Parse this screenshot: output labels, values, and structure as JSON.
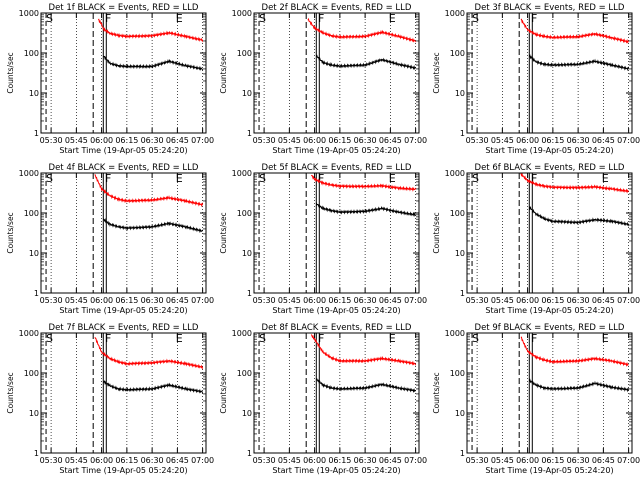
{
  "window_title": "",
  "chart_data": [
    {
      "type": "line",
      "title": "Det 1f BLACK = Events, RED = LLD",
      "xlabel": "Start Time (19-Apr-05 05:24:20)",
      "ylabel": "Counts/sec",
      "yscale": "log",
      "ylim": [
        1,
        1000
      ],
      "xlim": [
        "05:24",
        "07:02"
      ],
      "yticks": [
        "1",
        "10",
        "100",
        "1000"
      ],
      "xticks": [
        "05:30",
        "05:45",
        "06:00",
        "06:15",
        "06:30",
        "06:45",
        "07:00"
      ],
      "markers": [
        "S",
        "F",
        "E"
      ],
      "grid": "dotted verticals",
      "series": [
        {
          "color": "#ff0000",
          "x": [
            "05:58",
            "06:00",
            "06:01",
            "06:05",
            "06:10",
            "06:15",
            "06:30",
            "06:40",
            "06:50",
            "07:00"
          ],
          "values": [
            700,
            520,
            400,
            310,
            275,
            260,
            270,
            320,
            260,
            210
          ]
        },
        {
          "color": "#000000",
          "x": [
            "06:01",
            "06:05",
            "06:10",
            "06:15",
            "06:30",
            "06:40",
            "06:50",
            "07:00"
          ],
          "values": [
            85,
            55,
            48,
            46,
            46,
            62,
            48,
            40
          ]
        }
      ]
    },
    {
      "type": "line",
      "title": "Det 2f BLACK = Events, RED = LLD",
      "xlabel": "Start Time (19-Apr-05 05:24:20)",
      "ylabel": "Counts/sec",
      "yscale": "log",
      "ylim": [
        1,
        1000
      ],
      "xlim": [
        "05:24",
        "07:02"
      ],
      "yticks": [
        "1",
        "10",
        "100",
        "1000"
      ],
      "xticks": [
        "05:30",
        "05:45",
        "06:00",
        "06:15",
        "06:30",
        "06:45",
        "07:00"
      ],
      "markers": [
        "S",
        "F",
        "E"
      ],
      "grid": "dotted verticals",
      "series": [
        {
          "color": "#ff0000",
          "x": [
            "05:56",
            "06:00",
            "06:05",
            "06:10",
            "06:15",
            "06:30",
            "06:40",
            "06:50",
            "07:00"
          ],
          "values": [
            700,
            420,
            320,
            270,
            250,
            260,
            330,
            260,
            200
          ]
        },
        {
          "color": "#000000",
          "x": [
            "06:01",
            "06:05",
            "06:10",
            "06:15",
            "06:30",
            "06:40",
            "06:50",
            "07:00"
          ],
          "values": [
            85,
            58,
            50,
            47,
            50,
            68,
            52,
            42
          ]
        }
      ]
    },
    {
      "type": "line",
      "title": "Det 3f BLACK = Events, RED = LLD",
      "xlabel": "Start Time (19-Apr-05 05:24:20)",
      "ylabel": "Counts/sec",
      "yscale": "log",
      "ylim": [
        1,
        1000
      ],
      "xlim": [
        "05:24",
        "07:02"
      ],
      "yticks": [
        "1",
        "10",
        "100",
        "1000"
      ],
      "xticks": [
        "05:30",
        "05:45",
        "06:00",
        "06:15",
        "06:30",
        "06:45",
        "07:00"
      ],
      "markers": [
        "S",
        "F",
        "E"
      ],
      "grid": "dotted verticals",
      "series": [
        {
          "color": "#ff0000",
          "x": [
            "05:56",
            "06:00",
            "06:05",
            "06:10",
            "06:15",
            "06:30",
            "06:40",
            "06:50",
            "07:00"
          ],
          "values": [
            700,
            380,
            290,
            260,
            245,
            255,
            300,
            240,
            190
          ]
        },
        {
          "color": "#000000",
          "x": [
            "06:01",
            "06:05",
            "06:10",
            "06:15",
            "06:30",
            "06:40",
            "06:50",
            "07:00"
          ],
          "values": [
            85,
            60,
            52,
            50,
            52,
            62,
            50,
            40
          ]
        }
      ]
    },
    {
      "type": "line",
      "title": "Det 4f BLACK = Events, RED = LLD",
      "xlabel": "Start Time (19-Apr-05 05:24:20)",
      "ylabel": "Counts/sec",
      "yscale": "log",
      "ylim": [
        1,
        1000
      ],
      "xlim": [
        "05:24",
        "07:02"
      ],
      "yticks": [
        "1",
        "10",
        "100",
        "1000"
      ],
      "xticks": [
        "05:30",
        "05:45",
        "06:00",
        "06:15",
        "06:30",
        "06:45",
        "07:00"
      ],
      "markers": [
        "S",
        "F",
        "E"
      ],
      "grid": "dotted verticals",
      "series": [
        {
          "color": "#ff0000",
          "x": [
            "05:56",
            "06:00",
            "06:05",
            "06:10",
            "06:15",
            "06:30",
            "06:40",
            "06:50",
            "07:00"
          ],
          "values": [
            900,
            400,
            270,
            220,
            200,
            210,
            240,
            200,
            160
          ]
        },
        {
          "color": "#000000",
          "x": [
            "06:01",
            "06:05",
            "06:10",
            "06:15",
            "06:30",
            "06:40",
            "06:50",
            "07:00"
          ],
          "values": [
            70,
            52,
            45,
            42,
            45,
            55,
            45,
            35
          ]
        }
      ]
    },
    {
      "type": "line",
      "title": "Det 5f BLACK = Events, RED = LLD",
      "xlabel": "Start Time (19-Apr-05 05:24:20)",
      "ylabel": "Counts/sec",
      "yscale": "log",
      "ylim": [
        1,
        1000
      ],
      "xlim": [
        "05:24",
        "07:02"
      ],
      "yticks": [
        "1",
        "10",
        "100",
        "1000"
      ],
      "xticks": [
        "05:30",
        "05:45",
        "06:00",
        "06:15",
        "06:30",
        "06:45",
        "07:00"
      ],
      "markers": [
        "S",
        "F",
        "E"
      ],
      "grid": "dotted verticals",
      "series": [
        {
          "color": "#ff0000",
          "x": [
            "05:58",
            "06:00",
            "06:05",
            "06:10",
            "06:15",
            "06:30",
            "06:40",
            "06:50",
            "07:00"
          ],
          "values": [
            900,
            700,
            560,
            500,
            470,
            460,
            480,
            420,
            390
          ]
        },
        {
          "color": "#000000",
          "x": [
            "06:01",
            "06:05",
            "06:10",
            "06:15",
            "06:30",
            "06:40",
            "06:50",
            "07:00"
          ],
          "values": [
            170,
            130,
            115,
            105,
            110,
            130,
            105,
            90
          ]
        }
      ]
    },
    {
      "type": "line",
      "title": "Det 6f BLACK = Events, RED = LLD",
      "xlabel": "Start Time (19-Apr-05 05:24:20)",
      "ylabel": "Counts/sec",
      "yscale": "log",
      "ylim": [
        1,
        1000
      ],
      "xlim": [
        "05:24",
        "07:02"
      ],
      "yticks": [
        "1",
        "10",
        "100",
        "1000"
      ],
      "xticks": [
        "05:30",
        "05:45",
        "06:00",
        "06:15",
        "06:30",
        "06:45",
        "07:00"
      ],
      "markers": [
        "S",
        "F",
        "E"
      ],
      "grid": "dotted verticals",
      "series": [
        {
          "color": "#ff0000",
          "x": [
            "05:56",
            "06:00",
            "06:05",
            "06:10",
            "06:15",
            "06:30",
            "06:40",
            "06:50",
            "07:00"
          ],
          "values": [
            950,
            650,
            520,
            470,
            440,
            430,
            450,
            400,
            350
          ]
        },
        {
          "color": "#000000",
          "x": [
            "06:01",
            "06:05",
            "06:10",
            "06:15",
            "06:30",
            "06:40",
            "06:50",
            "07:00"
          ],
          "values": [
            140,
            95,
            72,
            62,
            58,
            68,
            62,
            52
          ]
        }
      ]
    },
    {
      "type": "line",
      "title": "Det 7f BLACK = Events, RED = LLD",
      "xlabel": "Start Time (19-Apr-05 05:24:20)",
      "ylabel": "Counts/sec",
      "yscale": "log",
      "ylim": [
        1,
        1000
      ],
      "xlim": [
        "05:24",
        "07:02"
      ],
      "yticks": [
        "1",
        "10",
        "100",
        "1000"
      ],
      "xticks": [
        "05:30",
        "05:45",
        "06:00",
        "06:15",
        "06:30",
        "06:45",
        "07:00"
      ],
      "markers": [
        "S",
        "F",
        "E"
      ],
      "grid": "dotted verticals",
      "series": [
        {
          "color": "#ff0000",
          "x": [
            "05:56",
            "06:00",
            "06:05",
            "06:10",
            "06:15",
            "06:30",
            "06:40",
            "06:50",
            "07:00"
          ],
          "values": [
            800,
            330,
            230,
            190,
            170,
            180,
            200,
            170,
            140
          ]
        },
        {
          "color": "#000000",
          "x": [
            "06:01",
            "06:05",
            "06:10",
            "06:15",
            "06:30",
            "06:40",
            "06:50",
            "07:00"
          ],
          "values": [
            62,
            48,
            40,
            38,
            40,
            50,
            40,
            34
          ]
        }
      ]
    },
    {
      "type": "line",
      "title": "Det 8f BLACK = Events, RED = LLD",
      "xlabel": "Start Time (19-Apr-05 05:24:20)",
      "ylabel": "Counts/sec",
      "yscale": "log",
      "ylim": [
        1,
        1000
      ],
      "xlim": [
        "05:24",
        "07:02"
      ],
      "yticks": [
        "1",
        "10",
        "100",
        "1000"
      ],
      "xticks": [
        "05:30",
        "05:45",
        "06:00",
        "06:15",
        "06:30",
        "06:45",
        "07:00"
      ],
      "markers": [
        "S",
        "F",
        "E"
      ],
      "grid": "dotted verticals",
      "series": [
        {
          "color": "#ff0000",
          "x": [
            "05:58",
            "06:00",
            "06:05",
            "06:10",
            "06:15",
            "06:30",
            "06:40",
            "06:50",
            "07:00"
          ],
          "values": [
            900,
            700,
            330,
            240,
            200,
            200,
            230,
            200,
            170
          ]
        },
        {
          "color": "#000000",
          "x": [
            "06:01",
            "06:05",
            "06:10",
            "06:15",
            "06:30",
            "06:40",
            "06:50",
            "07:00"
          ],
          "values": [
            70,
            50,
            42,
            40,
            42,
            52,
            42,
            36
          ]
        }
      ]
    },
    {
      "type": "line",
      "title": "Det 9f BLACK = Events, RED = LLD",
      "xlabel": "Start Time (19-Apr-05 05:24:20)",
      "ylabel": "Counts/sec",
      "yscale": "log",
      "ylim": [
        1,
        1000
      ],
      "xlim": [
        "05:24",
        "07:02"
      ],
      "yticks": [
        "1",
        "10",
        "100",
        "1000"
      ],
      "xticks": [
        "05:30",
        "05:45",
        "06:00",
        "06:15",
        "06:30",
        "06:45",
        "07:00"
      ],
      "markers": [
        "S",
        "F",
        "E"
      ],
      "grid": "dotted verticals",
      "series": [
        {
          "color": "#ff0000",
          "x": [
            "05:56",
            "06:00",
            "06:05",
            "06:10",
            "06:15",
            "06:30",
            "06:40",
            "06:50",
            "07:00"
          ],
          "values": [
            800,
            350,
            250,
            210,
            190,
            200,
            230,
            200,
            160
          ]
        },
        {
          "color": "#000000",
          "x": [
            "06:01",
            "06:05",
            "06:10",
            "06:15",
            "06:30",
            "06:40",
            "06:50",
            "07:00"
          ],
          "values": [
            65,
            50,
            42,
            40,
            42,
            55,
            44,
            38
          ]
        }
      ]
    }
  ]
}
